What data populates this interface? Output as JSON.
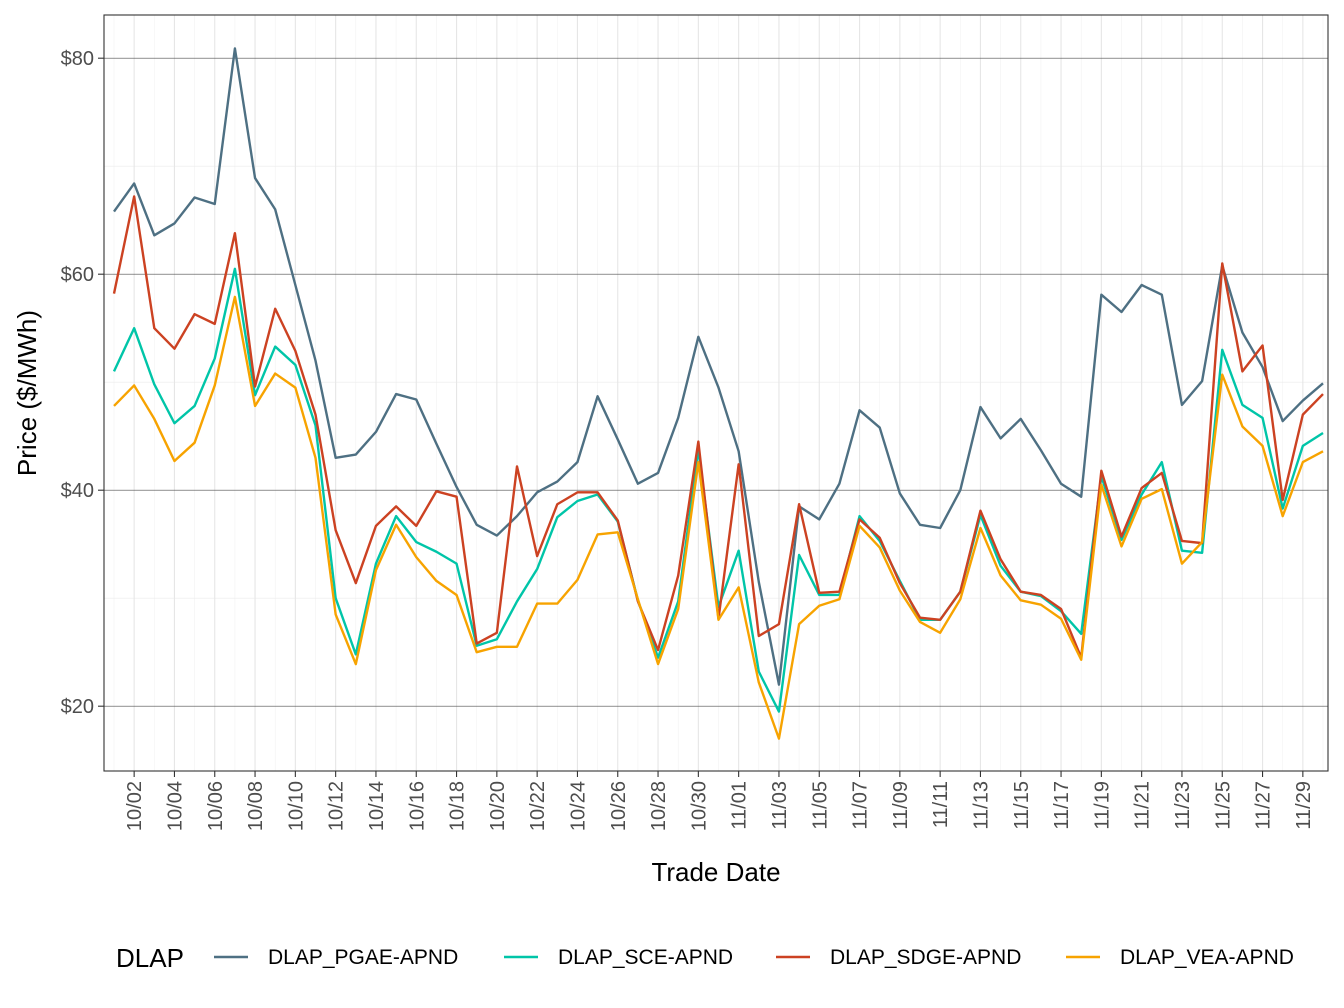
{
  "chart_data": {
    "type": "line",
    "xlabel": "Trade Date",
    "ylabel": "Price ($/MWh)",
    "ylim": [
      14,
      84
    ],
    "yticks": [
      20,
      40,
      60,
      80
    ],
    "ytick_labels": [
      "$20",
      "$40",
      "$60",
      "$80"
    ],
    "grid": true,
    "legend_title": "DLAP",
    "legend_position": "bottom",
    "x": [
      "10/01",
      "10/02",
      "10/03",
      "10/04",
      "10/05",
      "10/06",
      "10/07",
      "10/08",
      "10/09",
      "10/10",
      "10/11",
      "10/12",
      "10/13",
      "10/14",
      "10/15",
      "10/16",
      "10/17",
      "10/18",
      "10/19",
      "10/20",
      "10/21",
      "10/22",
      "10/23",
      "10/24",
      "10/25",
      "10/26",
      "10/27",
      "10/28",
      "10/29",
      "10/30",
      "10/31",
      "11/01",
      "11/02",
      "11/03",
      "11/04",
      "11/05",
      "11/06",
      "11/07",
      "11/08",
      "11/09",
      "11/10",
      "11/11",
      "11/12",
      "11/13",
      "11/14",
      "11/15",
      "11/16",
      "11/17",
      "11/18",
      "11/19",
      "11/20",
      "11/21",
      "11/22",
      "11/23",
      "11/24",
      "11/25",
      "11/26",
      "11/27",
      "11/28",
      "11/29",
      "11/30"
    ],
    "xtick_labels": [
      "10/02",
      "10/04",
      "10/06",
      "10/08",
      "10/10",
      "10/12",
      "10/14",
      "10/16",
      "10/18",
      "10/20",
      "10/22",
      "10/24",
      "10/26",
      "10/28",
      "10/30",
      "11/01",
      "11/03",
      "11/05",
      "11/07",
      "11/09",
      "11/11",
      "11/13",
      "11/15",
      "11/17",
      "11/19",
      "11/21",
      "11/23",
      "11/25",
      "11/27",
      "11/29"
    ],
    "series": [
      {
        "name": "DLAP_PGAE-APND",
        "color": "#4e7083",
        "values": [
          65.8,
          68.4,
          63.6,
          64.7,
          67.1,
          66.5,
          80.9,
          68.9,
          66.0,
          59.0,
          52.0,
          43.0,
          43.3,
          45.4,
          48.9,
          48.4,
          44.3,
          40.3,
          36.8,
          35.8,
          37.6,
          39.8,
          40.8,
          42.6,
          48.7,
          44.7,
          40.6,
          41.6,
          46.7,
          54.2,
          49.5,
          43.6,
          31.5,
          22.0,
          38.5,
          37.3,
          40.6,
          47.4,
          45.8,
          39.7,
          36.8,
          36.5,
          40.0,
          47.7,
          44.8,
          46.6,
          43.7,
          40.6,
          39.4,
          58.1,
          56.5,
          59.0,
          58.1,
          47.9,
          50.1,
          60.8,
          54.6,
          51.4,
          46.4,
          48.3,
          49.9
        ]
      },
      {
        "name": "DLAP_SCE-APND",
        "color": "#00c5a8",
        "values": [
          51.0,
          55.0,
          49.8,
          46.2,
          47.8,
          52.2,
          60.5,
          48.8,
          53.3,
          51.6,
          46.0,
          30.0,
          24.8,
          33.2,
          37.6,
          35.2,
          34.3,
          33.2,
          25.6,
          26.2,
          29.7,
          32.7,
          37.5,
          39.0,
          39.6,
          37.1,
          29.8,
          24.5,
          29.7,
          43.8,
          29.2,
          34.4,
          23.2,
          19.5,
          34.0,
          30.3,
          30.3,
          37.6,
          35.3,
          31.6,
          28.0,
          28.0,
          30.6,
          37.7,
          33.0,
          30.6,
          30.2,
          28.8,
          26.7,
          41.3,
          35.4,
          39.6,
          42.6,
          34.4,
          34.2,
          53.0,
          47.9,
          46.7,
          38.3,
          44.1,
          45.3
        ]
      },
      {
        "name": "DLAP_SDGE-APND",
        "color": "#cc4222",
        "values": [
          58.2,
          67.2,
          55.0,
          53.1,
          56.3,
          55.4,
          63.8,
          49.6,
          56.8,
          52.9,
          47.0,
          36.3,
          31.4,
          36.7,
          38.5,
          36.7,
          39.9,
          39.4,
          25.8,
          26.8,
          42.2,
          33.9,
          38.7,
          39.8,
          39.8,
          37.2,
          29.7,
          25.2,
          32.1,
          44.5,
          28.1,
          42.4,
          26.5,
          27.6,
          38.7,
          30.5,
          30.6,
          37.3,
          35.6,
          31.4,
          28.2,
          28.0,
          30.6,
          38.1,
          33.6,
          30.6,
          30.3,
          29.0,
          24.5,
          41.8,
          35.7,
          40.2,
          41.6,
          35.3,
          35.1,
          61.0,
          51.0,
          53.4,
          39.1,
          47.0,
          48.9
        ]
      },
      {
        "name": "DLAP_VEA-APND",
        "color": "#f7a300",
        "values": [
          47.8,
          49.7,
          46.6,
          42.7,
          44.4,
          49.7,
          57.9,
          47.8,
          50.8,
          49.5,
          43.0,
          28.5,
          23.9,
          32.6,
          36.8,
          33.8,
          31.6,
          30.3,
          25.0,
          25.5,
          25.5,
          29.5,
          29.5,
          31.7,
          35.9,
          36.1,
          29.9,
          23.9,
          29.0,
          42.6,
          28.0,
          31.0,
          22.2,
          17.0,
          27.6,
          29.3,
          29.9,
          36.7,
          34.7,
          30.7,
          27.8,
          26.8,
          29.9,
          36.5,
          32.1,
          29.8,
          29.4,
          28.1,
          24.3,
          40.5,
          34.8,
          39.2,
          40.1,
          33.2,
          35.2,
          50.7,
          45.9,
          44.1,
          37.6,
          42.6,
          43.6
        ]
      }
    ]
  }
}
